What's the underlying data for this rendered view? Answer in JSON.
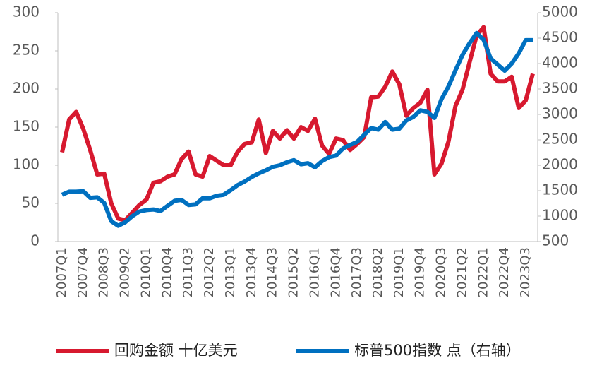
{
  "chart_data": {
    "type": "line",
    "categories": [
      "2007Q1",
      null,
      null,
      "2007Q4",
      null,
      null,
      "2008Q3",
      null,
      null,
      "2009Q2",
      null,
      null,
      "2010Q1",
      null,
      null,
      "2010Q4",
      null,
      null,
      "2011Q3",
      null,
      null,
      "2012Q2",
      null,
      null,
      "2013Q1",
      null,
      null,
      "2013Q4",
      null,
      null,
      "2014Q3",
      null,
      null,
      "2015Q2",
      null,
      null,
      "2016Q1",
      null,
      null,
      "2016Q4",
      null,
      null,
      "2017Q3",
      null,
      null,
      "2018Q2",
      null,
      null,
      "2019Q1",
      null,
      null,
      "2019Q4",
      null,
      null,
      "2020Q3",
      null,
      null,
      "2021Q2",
      null,
      null,
      "2022Q1",
      null,
      null,
      "2022Q4",
      null,
      null,
      "2023Q3",
      null
    ],
    "series": [
      {
        "name": "回购金额 十亿美元",
        "color": "#d7192f",
        "values": [
          117,
          160,
          170,
          148,
          120,
          88,
          89,
          50,
          30,
          28,
          38,
          48,
          55,
          77,
          79,
          85,
          88,
          108,
          118,
          88,
          85,
          112,
          106,
          100,
          100,
          118,
          128,
          130,
          160,
          116,
          145,
          135,
          146,
          135,
          150,
          145,
          161,
          126,
          115,
          135,
          133,
          120,
          128,
          137,
          189,
          190,
          203,
          223,
          206,
          165,
          175,
          182,
          199,
          88,
          102,
          131,
          178,
          199,
          235,
          270,
          281,
          220,
          210,
          210,
          216,
          175,
          185,
          220
        ]
      },
      {
        "name": "标普500指数 点（右轴）",
        "color": "#0070c0",
        "axis": "y2",
        "values": [
          1420,
          1480,
          1480,
          1490,
          1360,
          1370,
          1260,
          900,
          810,
          880,
          1000,
          1090,
          1120,
          1130,
          1100,
          1200,
          1300,
          1320,
          1220,
          1230,
          1350,
          1350,
          1400,
          1420,
          1510,
          1610,
          1680,
          1770,
          1840,
          1900,
          1970,
          2000,
          2060,
          2100,
          2020,
          2040,
          1960,
          2080,
          2160,
          2190,
          2330,
          2400,
          2460,
          2600,
          2730,
          2700,
          2850,
          2700,
          2720,
          2880,
          2950,
          3080,
          3050,
          2930,
          3300,
          3550,
          3870,
          4170,
          4400,
          4600,
          4470,
          4100,
          3980,
          3860,
          4000,
          4200,
          4460,
          4460
        ]
      }
    ],
    "ylim": [
      0,
      300
    ],
    "yticks": [
      0,
      50,
      100,
      150,
      200,
      250,
      300
    ],
    "y2lim": [
      500,
      5000
    ],
    "y2ticks": [
      500,
      1000,
      1500,
      2000,
      2500,
      3000,
      3500,
      4000,
      4500,
      5000
    ],
    "legend": "bottom"
  }
}
